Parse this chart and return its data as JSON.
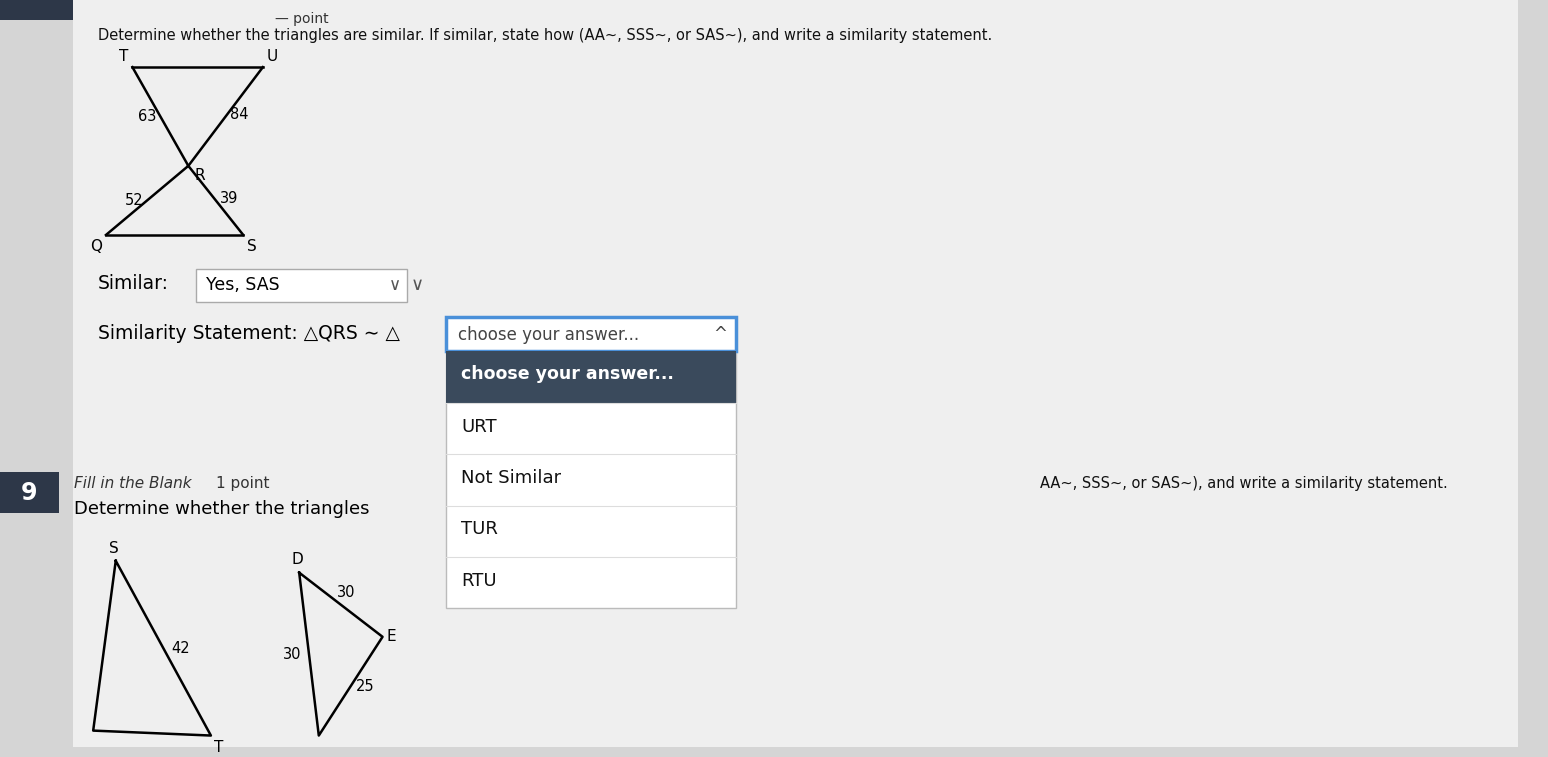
{
  "bg_color": "#d5d5d5",
  "content_bg": "#efefef",
  "title_q8": "Determine whether the triangles are similar. If similar, state how (AA∼, SSS∼, or SAS∼), and write a similarity statement.",
  "similar_label": "Similar:",
  "similar_value": "Yes, SAS",
  "similarity_stmt_label": "Similarity Statement: △QRS ∼ △",
  "dropdown_header_text": "choose your answer...",
  "dropdown_selected_text": "choose your answer...",
  "dropdown_options": [
    "URT",
    "Not Similar",
    "TUR",
    "RTU"
  ],
  "q9_number": "9",
  "q9_label": "Fill in the Blank",
  "q9_points": "1 point",
  "q9_title": "Determine whether the triangles",
  "q9_title2": "AA∼, SSS∼, or SAS∼), and write a similarity statement.",
  "dropdown_box_color": "#3a4a5c",
  "dropdown_border_color": "#4a90d9"
}
